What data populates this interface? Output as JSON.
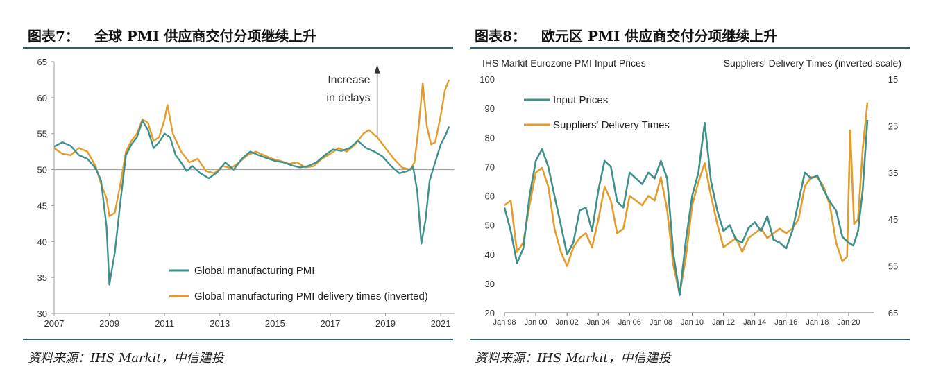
{
  "figures": [
    {
      "label": "图表7：",
      "title": "全球 PMI 供应商交付分项继续上升",
      "source": "资料来源：IHS Markit，中信建投"
    },
    {
      "label": "图表8：",
      "title": "欧元区 PMI 供应商交付分项继续上升",
      "source": "资料来源：IHS Markit，中信建投"
    }
  ],
  "colors": {
    "teal": "#3f8f8a",
    "orange": "#e39b2c",
    "rule": "#2f5d73"
  },
  "chart_data": [
    {
      "type": "line",
      "title": "",
      "xlim": [
        2007,
        2021.5
      ],
      "ylim": [
        30,
        65
      ],
      "x_ticks": [
        "2007",
        "2009",
        "2011",
        "2013",
        "2015",
        "2017",
        "2019",
        "2021"
      ],
      "x_tick_values": [
        2007,
        2009,
        2011,
        2013,
        2015,
        2017,
        2019,
        2021
      ],
      "y_ticks": [
        "30",
        "35",
        "40",
        "45",
        "50",
        "55",
        "60",
        "65"
      ],
      "grid": "reference line at 50",
      "legend_position": "bottom-center",
      "annotation": {
        "text": [
          "Increase",
          "in delays"
        ],
        "x": 2018.7,
        "arrow": "up"
      },
      "series": [
        {
          "name": "Global manufacturing PMI",
          "color": "#3f8f8a",
          "x": [
            2007.0,
            2007.3,
            2007.6,
            2007.9,
            2008.2,
            2008.5,
            2008.7,
            2008.9,
            2009.0,
            2009.2,
            2009.4,
            2009.6,
            2009.8,
            2010.0,
            2010.2,
            2010.4,
            2010.6,
            2010.8,
            2011.0,
            2011.2,
            2011.4,
            2011.6,
            2011.8,
            2012.0,
            2012.3,
            2012.6,
            2012.9,
            2013.2,
            2013.5,
            2013.8,
            2014.1,
            2014.4,
            2014.7,
            2015.0,
            2015.3,
            2015.6,
            2015.9,
            2016.2,
            2016.5,
            2016.8,
            2017.1,
            2017.4,
            2017.7,
            2018.0,
            2018.3,
            2018.6,
            2018.9,
            2019.2,
            2019.5,
            2019.8,
            2020.0,
            2020.15,
            2020.3,
            2020.45,
            2020.6,
            2020.8,
            2021.0,
            2021.2,
            2021.3
          ],
          "y": [
            53.2,
            53.8,
            53.3,
            52.0,
            51.5,
            50.2,
            48.5,
            42.0,
            34.0,
            38.5,
            45.5,
            52.0,
            53.5,
            54.5,
            56.8,
            55.5,
            53.0,
            53.8,
            55.0,
            54.5,
            52.0,
            51.0,
            49.8,
            50.5,
            49.5,
            48.8,
            49.6,
            51.0,
            50.0,
            51.5,
            52.5,
            52.0,
            51.6,
            51.2,
            51.0,
            50.6,
            50.3,
            50.5,
            51.0,
            52.0,
            52.8,
            52.6,
            53.0,
            54.0,
            53.0,
            52.5,
            51.8,
            50.5,
            49.5,
            49.8,
            50.4,
            47.0,
            39.7,
            43.0,
            48.5,
            51.0,
            53.5,
            55.0,
            56.0
          ]
        },
        {
          "name": "Global manufacturing PMI delivery times (inverted)",
          "color": "#e39b2c",
          "x": [
            2007.0,
            2007.3,
            2007.6,
            2007.9,
            2008.2,
            2008.5,
            2008.7,
            2008.9,
            2009.0,
            2009.2,
            2009.4,
            2009.6,
            2009.8,
            2010.0,
            2010.2,
            2010.4,
            2010.6,
            2010.8,
            2011.0,
            2011.1,
            2011.3,
            2011.6,
            2011.9,
            2012.2,
            2012.5,
            2012.8,
            2013.1,
            2013.4,
            2013.7,
            2014.0,
            2014.3,
            2014.6,
            2014.9,
            2015.2,
            2015.5,
            2015.8,
            2016.1,
            2016.4,
            2016.7,
            2017.0,
            2017.3,
            2017.6,
            2017.9,
            2018.2,
            2018.4,
            2018.7,
            2019.0,
            2019.3,
            2019.6,
            2019.9,
            2020.05,
            2020.2,
            2020.35,
            2020.5,
            2020.65,
            2020.8,
            2021.0,
            2021.15,
            2021.3
          ],
          "y": [
            53.0,
            52.2,
            52.0,
            53.0,
            52.5,
            50.5,
            48.0,
            46.0,
            43.5,
            44.0,
            48.0,
            52.5,
            54.0,
            55.0,
            57.0,
            56.5,
            54.0,
            54.5,
            57.0,
            59.0,
            55.0,
            52.5,
            51.0,
            51.5,
            49.8,
            49.5,
            50.5,
            50.2,
            51.0,
            52.0,
            52.5,
            52.0,
            51.5,
            51.2,
            50.8,
            51.0,
            50.3,
            50.5,
            51.5,
            52.2,
            53.0,
            52.5,
            53.5,
            55.0,
            55.5,
            54.5,
            53.0,
            51.5,
            50.3,
            50.0,
            51.0,
            56.0,
            62.0,
            56.0,
            53.5,
            53.8,
            57.5,
            61.0,
            62.5
          ]
        }
      ]
    },
    {
      "type": "line",
      "title": "",
      "left_header": "IHS Markit Eurozone PMI Input Prices",
      "right_header": "Suppliers' Delivery Times (inverted scale)",
      "xlim": [
        1998,
        2021.6
      ],
      "ylim": [
        20,
        100
      ],
      "y2lim": [
        65,
        15
      ],
      "x_ticks": [
        "Jan 98",
        "Jan 00",
        "Jan 02",
        "Jan 04",
        "Jan 06",
        "Jan 08",
        "Jan 10",
        "Jan 12",
        "Jan 14",
        "Jan 16",
        "Jan 18",
        "Jan 20"
      ],
      "x_tick_values": [
        1998,
        2000,
        2002,
        2004,
        2006,
        2008,
        2010,
        2012,
        2014,
        2016,
        2018,
        2020
      ],
      "y_ticks": [
        "20",
        "30",
        "40",
        "50",
        "60",
        "70",
        "80",
        "90",
        "100"
      ],
      "y2_ticks": [
        "15",
        "25",
        "35",
        "45",
        "55",
        "65"
      ],
      "grid": false,
      "legend_position": "top-left",
      "series": [
        {
          "name": "Input Prices",
          "color": "#3f8f8a",
          "axis": "left",
          "x": [
            1998.0,
            1998.4,
            1998.8,
            1999.2,
            1999.6,
            2000.0,
            2000.4,
            2000.8,
            2001.2,
            2001.6,
            2002.0,
            2002.4,
            2002.8,
            2003.2,
            2003.6,
            2004.0,
            2004.4,
            2004.8,
            2005.2,
            2005.6,
            2006.0,
            2006.4,
            2006.8,
            2007.2,
            2007.6,
            2008.0,
            2008.4,
            2008.8,
            2009.2,
            2009.6,
            2010.0,
            2010.4,
            2010.8,
            2011.2,
            2011.6,
            2012.0,
            2012.4,
            2012.8,
            2013.2,
            2013.6,
            2014.0,
            2014.4,
            2014.8,
            2015.2,
            2015.6,
            2016.0,
            2016.4,
            2016.8,
            2017.2,
            2017.6,
            2018.0,
            2018.4,
            2018.8,
            2019.2,
            2019.6,
            2020.0,
            2020.3,
            2020.6,
            2020.9,
            2021.2
          ],
          "y": [
            56,
            48,
            37,
            42,
            60,
            72,
            76,
            70,
            60,
            50,
            40,
            44,
            55,
            56,
            48,
            62,
            72,
            70,
            58,
            56,
            68,
            66,
            64,
            68,
            66,
            72,
            66,
            40,
            26,
            45,
            60,
            68,
            85,
            65,
            55,
            48,
            50,
            45,
            44,
            49,
            51,
            48,
            53,
            45,
            44,
            42,
            48,
            58,
            68,
            66,
            67,
            62,
            58,
            55,
            46,
            44,
            43,
            48,
            62,
            86
          ]
        },
        {
          "name": "Suppliers' Delivery Times",
          "color": "#e39b2c",
          "axis": "right",
          "x": [
            1998.0,
            1998.4,
            1998.8,
            1999.2,
            1999.6,
            2000.0,
            2000.4,
            2000.8,
            2001.2,
            2001.6,
            2002.0,
            2002.4,
            2002.8,
            2003.2,
            2003.6,
            2004.0,
            2004.4,
            2004.8,
            2005.2,
            2005.6,
            2006.0,
            2006.4,
            2006.8,
            2007.2,
            2007.6,
            2008.0,
            2008.4,
            2008.8,
            2009.2,
            2009.6,
            2010.0,
            2010.4,
            2010.8,
            2011.2,
            2011.6,
            2012.0,
            2012.4,
            2012.8,
            2013.2,
            2013.6,
            2014.0,
            2014.4,
            2014.8,
            2015.2,
            2015.6,
            2016.0,
            2016.4,
            2016.8,
            2017.2,
            2017.6,
            2018.0,
            2018.4,
            2018.8,
            2019.2,
            2019.6,
            2019.9,
            2020.1,
            2020.35,
            2020.6,
            2020.9,
            2021.2
          ],
          "y": [
            42,
            41,
            52,
            50,
            42,
            35,
            34,
            38,
            47,
            52,
            55,
            51,
            49,
            48,
            51,
            45,
            38,
            41,
            48,
            47,
            40,
            41,
            42,
            40,
            41,
            36,
            43,
            55,
            61,
            53,
            42,
            37,
            33,
            40,
            46,
            51,
            50,
            49,
            52,
            49,
            48,
            47,
            49,
            48,
            47,
            48,
            47,
            45,
            38,
            36,
            36,
            38,
            42,
            50,
            54,
            53,
            26,
            46,
            45,
            30,
            20
          ]
        }
      ]
    }
  ]
}
